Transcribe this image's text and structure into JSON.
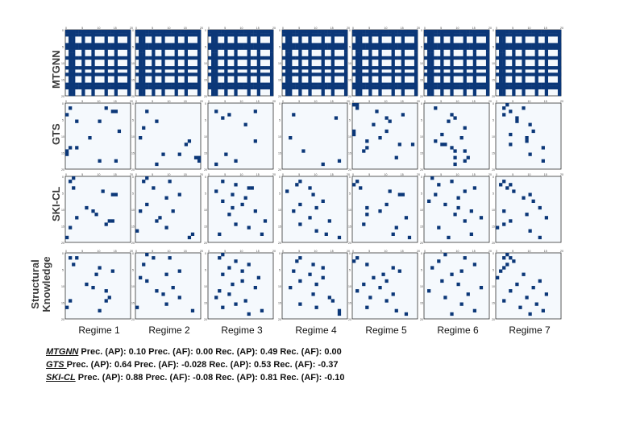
{
  "chart_data": {
    "type": "heatmap",
    "matrix_size": 20,
    "colors": {
      "on": "#0b3778",
      "off": "#f5f9fd",
      "frame": "#333333"
    },
    "row_labels": [
      "MTGNN",
      "GTS",
      "SKI-CL",
      "Structural Knowledge"
    ],
    "col_labels": [
      "Regime 1",
      "Regime 2",
      "Regime 3",
      "Regime 4",
      "Regime 5",
      "Regime 6",
      "Regime 7"
    ],
    "tick_labels": [
      "0",
      "5",
      "10",
      "15",
      "20"
    ],
    "mtgnn_rows": [
      0,
      1,
      4,
      5,
      8,
      11,
      13,
      16,
      17
    ],
    "mtgnn_cols": [
      1,
      2,
      5,
      8,
      12,
      15,
      19
    ],
    "mtgnn_holes": [
      [
        2,
        9
      ],
      [
        3,
        9
      ],
      [
        2,
        10
      ],
      [
        3,
        10
      ],
      [
        2,
        14
      ],
      [
        3,
        14
      ],
      [
        6,
        13
      ],
      [
        7,
        13
      ],
      [
        9,
        6
      ],
      [
        10,
        6
      ],
      [
        9,
        10
      ],
      [
        12,
        3
      ],
      [
        14,
        10
      ],
      [
        15,
        14
      ],
      [
        18,
        7
      ],
      [
        18,
        16
      ]
    ],
    "sparse": {
      "GTS": [
        [
          [
            1,
            1
          ],
          [
            1,
            12
          ],
          [
            2,
            14
          ],
          [
            2,
            15
          ],
          [
            3,
            0
          ],
          [
            5,
            3
          ],
          [
            5,
            10
          ],
          [
            8,
            16
          ],
          [
            10,
            7
          ],
          [
            13,
            1
          ],
          [
            13,
            3
          ],
          [
            14,
            0
          ],
          [
            15,
            0
          ],
          [
            17,
            10
          ],
          [
            17,
            15
          ]
        ],
        [
          [
            2,
            3
          ],
          [
            5,
            6
          ],
          [
            7,
            2
          ],
          [
            10,
            1
          ],
          [
            11,
            16
          ],
          [
            12,
            15
          ],
          [
            15,
            8
          ],
          [
            15,
            13
          ],
          [
            16,
            18
          ],
          [
            16,
            19
          ],
          [
            17,
            19
          ],
          [
            18,
            6
          ]
        ],
        [
          [
            2,
            2
          ],
          [
            2,
            14
          ],
          [
            3,
            6
          ],
          [
            4,
            4
          ],
          [
            6,
            11
          ],
          [
            11,
            14
          ],
          [
            15,
            5
          ],
          [
            17,
            8
          ],
          [
            18,
            2
          ]
        ],
        [
          [
            3,
            3
          ],
          [
            4,
            16
          ],
          [
            10,
            2
          ],
          [
            14,
            6
          ],
          [
            17,
            17
          ],
          [
            18,
            12
          ]
        ],
        [
          [
            0,
            0
          ],
          [
            0,
            1
          ],
          [
            1,
            1
          ],
          [
            2,
            7
          ],
          [
            3,
            15
          ],
          [
            4,
            10
          ],
          [
            5,
            11
          ],
          [
            6,
            6
          ],
          [
            8,
            0
          ],
          [
            8,
            10
          ],
          [
            9,
            0
          ],
          [
            10,
            8
          ],
          [
            11,
            4
          ],
          [
            12,
            14
          ],
          [
            12,
            18
          ],
          [
            13,
            4
          ],
          [
            14,
            3
          ],
          [
            16,
            13
          ]
        ],
        [
          [
            1,
            3
          ],
          [
            3,
            8
          ],
          [
            4,
            9
          ],
          [
            5,
            7
          ],
          [
            7,
            12
          ],
          [
            9,
            5
          ],
          [
            10,
            11
          ],
          [
            11,
            3
          ],
          [
            12,
            5
          ],
          [
            12,
            6
          ],
          [
            13,
            8
          ],
          [
            14,
            9
          ],
          [
            14,
            12
          ],
          [
            16,
            9
          ],
          [
            16,
            13
          ],
          [
            17,
            12
          ],
          [
            18,
            9
          ]
        ],
        [
          [
            0,
            3
          ],
          [
            1,
            2
          ],
          [
            1,
            8
          ],
          [
            2,
            4
          ],
          [
            3,
            2
          ],
          [
            4,
            6
          ],
          [
            5,
            6
          ],
          [
            6,
            10
          ],
          [
            8,
            11
          ],
          [
            9,
            4
          ],
          [
            10,
            9
          ],
          [
            11,
            9
          ],
          [
            12,
            4
          ],
          [
            13,
            14
          ],
          [
            15,
            10
          ],
          [
            17,
            14
          ]
        ]
      ],
      "SKI-CL": [
        [
          [
            0,
            2
          ],
          [
            1,
            1
          ],
          [
            3,
            2
          ],
          [
            4,
            11
          ],
          [
            5,
            14
          ],
          [
            5,
            15
          ],
          [
            9,
            6
          ],
          [
            10,
            8
          ],
          [
            11,
            9
          ],
          [
            12,
            3
          ],
          [
            13,
            13
          ],
          [
            13,
            14
          ],
          [
            14,
            12
          ],
          [
            15,
            1
          ],
          [
            18,
            0
          ]
        ],
        [
          [
            0,
            3
          ],
          [
            1,
            2
          ],
          [
            1,
            10
          ],
          [
            3,
            5
          ],
          [
            5,
            13
          ],
          [
            6,
            9
          ],
          [
            8,
            3
          ],
          [
            10,
            1
          ],
          [
            10,
            11
          ],
          [
            12,
            7
          ],
          [
            13,
            6
          ],
          [
            15,
            9
          ],
          [
            16,
            0
          ],
          [
            17,
            17
          ],
          [
            18,
            16
          ]
        ],
        [
          [
            1,
            4
          ],
          [
            2,
            8
          ],
          [
            3,
            12
          ],
          [
            3,
            13
          ],
          [
            4,
            2
          ],
          [
            5,
            7
          ],
          [
            6,
            11
          ],
          [
            7,
            4
          ],
          [
            8,
            10
          ],
          [
            9,
            7
          ],
          [
            10,
            14
          ],
          [
            11,
            6
          ],
          [
            13,
            17
          ],
          [
            14,
            8
          ],
          [
            15,
            12
          ],
          [
            17,
            3
          ],
          [
            17,
            16
          ]
        ],
        [
          [
            1,
            5
          ],
          [
            2,
            4
          ],
          [
            3,
            8
          ],
          [
            4,
            1
          ],
          [
            5,
            9
          ],
          [
            7,
            12
          ],
          [
            8,
            5
          ],
          [
            9,
            10
          ],
          [
            10,
            3
          ],
          [
            12,
            8
          ],
          [
            13,
            14
          ],
          [
            14,
            5
          ],
          [
            16,
            10
          ],
          [
            17,
            13
          ],
          [
            18,
            17
          ]
        ],
        [
          [
            1,
            1
          ],
          [
            2,
            0
          ],
          [
            3,
            2
          ],
          [
            4,
            11
          ],
          [
            5,
            14
          ],
          [
            5,
            15
          ],
          [
            8,
            10
          ],
          [
            9,
            4
          ],
          [
            10,
            8
          ],
          [
            11,
            4
          ],
          [
            12,
            16
          ],
          [
            14,
            3
          ],
          [
            15,
            13
          ],
          [
            17,
            12
          ],
          [
            18,
            17
          ]
        ],
        [
          [
            0,
            2
          ],
          [
            1,
            8
          ],
          [
            2,
            4
          ],
          [
            3,
            15
          ],
          [
            4,
            12
          ],
          [
            5,
            3
          ],
          [
            6,
            10
          ],
          [
            7,
            1
          ],
          [
            8,
            6
          ],
          [
            9,
            10
          ],
          [
            10,
            14
          ],
          [
            11,
            9
          ],
          [
            12,
            17
          ],
          [
            13,
            12
          ],
          [
            15,
            4
          ],
          [
            17,
            14
          ],
          [
            18,
            7
          ]
        ],
        [
          [
            1,
            2
          ],
          [
            2,
            1
          ],
          [
            2,
            4
          ],
          [
            3,
            3
          ],
          [
            4,
            5
          ],
          [
            5,
            10
          ],
          [
            6,
            8
          ],
          [
            7,
            11
          ],
          [
            9,
            13
          ],
          [
            10,
            2
          ],
          [
            11,
            9
          ],
          [
            12,
            15
          ],
          [
            13,
            4
          ],
          [
            14,
            2
          ],
          [
            15,
            0
          ],
          [
            16,
            10
          ],
          [
            18,
            13
          ]
        ]
      ],
      "Structural Knowledge": [
        [
          [
            1,
            1
          ],
          [
            1,
            3
          ],
          [
            3,
            2
          ],
          [
            4,
            10
          ],
          [
            5,
            14
          ],
          [
            6,
            9
          ],
          [
            9,
            6
          ],
          [
            10,
            8
          ],
          [
            11,
            12
          ],
          [
            13,
            13
          ],
          [
            14,
            12
          ],
          [
            14,
            1
          ],
          [
            16,
            0
          ],
          [
            17,
            10
          ]
        ],
        [
          [
            0,
            3
          ],
          [
            1,
            5
          ],
          [
            1,
            10
          ],
          [
            3,
            2
          ],
          [
            5,
            13
          ],
          [
            6,
            9
          ],
          [
            7,
            1
          ],
          [
            8,
            3
          ],
          [
            10,
            11
          ],
          [
            11,
            6
          ],
          [
            12,
            8
          ],
          [
            13,
            13
          ],
          [
            15,
            9
          ],
          [
            16,
            0
          ],
          [
            17,
            17
          ]
        ],
        [
          [
            0,
            4
          ],
          [
            1,
            3
          ],
          [
            2,
            8
          ],
          [
            3,
            12
          ],
          [
            4,
            6
          ],
          [
            5,
            10
          ],
          [
            6,
            4
          ],
          [
            7,
            15
          ],
          [
            8,
            10
          ],
          [
            9,
            7
          ],
          [
            10,
            14
          ],
          [
            11,
            3
          ],
          [
            12,
            6
          ],
          [
            13,
            2
          ],
          [
            14,
            11
          ],
          [
            15,
            8
          ],
          [
            16,
            4
          ],
          [
            17,
            16
          ],
          [
            18,
            12
          ]
        ],
        [
          [
            1,
            5
          ],
          [
            2,
            4
          ],
          [
            3,
            9
          ],
          [
            4,
            12
          ],
          [
            5,
            3
          ],
          [
            6,
            8
          ],
          [
            7,
            12
          ],
          [
            8,
            5
          ],
          [
            9,
            10
          ],
          [
            10,
            2
          ],
          [
            12,
            9
          ],
          [
            13,
            14
          ],
          [
            14,
            15
          ],
          [
            15,
            5
          ],
          [
            16,
            10
          ],
          [
            17,
            17
          ],
          [
            18,
            17
          ]
        ],
        [
          [
            1,
            1
          ],
          [
            2,
            0
          ],
          [
            3,
            4
          ],
          [
            4,
            12
          ],
          [
            5,
            14
          ],
          [
            6,
            9
          ],
          [
            7,
            6
          ],
          [
            8,
            10
          ],
          [
            9,
            3
          ],
          [
            10,
            8
          ],
          [
            11,
            1
          ],
          [
            12,
            12
          ],
          [
            13,
            5
          ],
          [
            14,
            10
          ],
          [
            16,
            4
          ],
          [
            17,
            13
          ],
          [
            18,
            16
          ]
        ],
        [
          [
            0,
            6
          ],
          [
            1,
            12
          ],
          [
            2,
            4
          ],
          [
            3,
            15
          ],
          [
            4,
            2
          ],
          [
            5,
            11
          ],
          [
            6,
            8
          ],
          [
            8,
            5
          ],
          [
            9,
            10
          ],
          [
            10,
            17
          ],
          [
            11,
            1
          ],
          [
            12,
            13
          ],
          [
            13,
            6
          ],
          [
            15,
            11
          ],
          [
            17,
            15
          ],
          [
            18,
            8
          ]
        ],
        [
          [
            0,
            3
          ],
          [
            1,
            2
          ],
          [
            1,
            4
          ],
          [
            2,
            5
          ],
          [
            3,
            3
          ],
          [
            4,
            2
          ],
          [
            5,
            1
          ],
          [
            6,
            8
          ],
          [
            7,
            0
          ],
          [
            8,
            13
          ],
          [
            9,
            6
          ],
          [
            10,
            11
          ],
          [
            11,
            4
          ],
          [
            12,
            15
          ],
          [
            13,
            9
          ],
          [
            14,
            2
          ],
          [
            15,
            12
          ],
          [
            16,
            7
          ],
          [
            17,
            14
          ],
          [
            18,
            10
          ]
        ]
      ]
    }
  },
  "metrics": [
    {
      "method": "MTGNN",
      "text": " Prec. (AP): 0.10  Prec. (AF): 0.00  Rec. (AP): 0.49  Rec. (AF): 0.00"
    },
    {
      "method": "GTS ",
      "text": " Prec. (AP): 0.64  Prec. (AF): -0.028  Rec. (AP): 0.53  Rec. (AF): -0.37"
    },
    {
      "method": "SKI-CL",
      "text": "  Prec. (AP): 0.88  Prec. (AF): -0.08  Rec. (AP): 0.81  Rec. (AF): -0.10"
    }
  ]
}
